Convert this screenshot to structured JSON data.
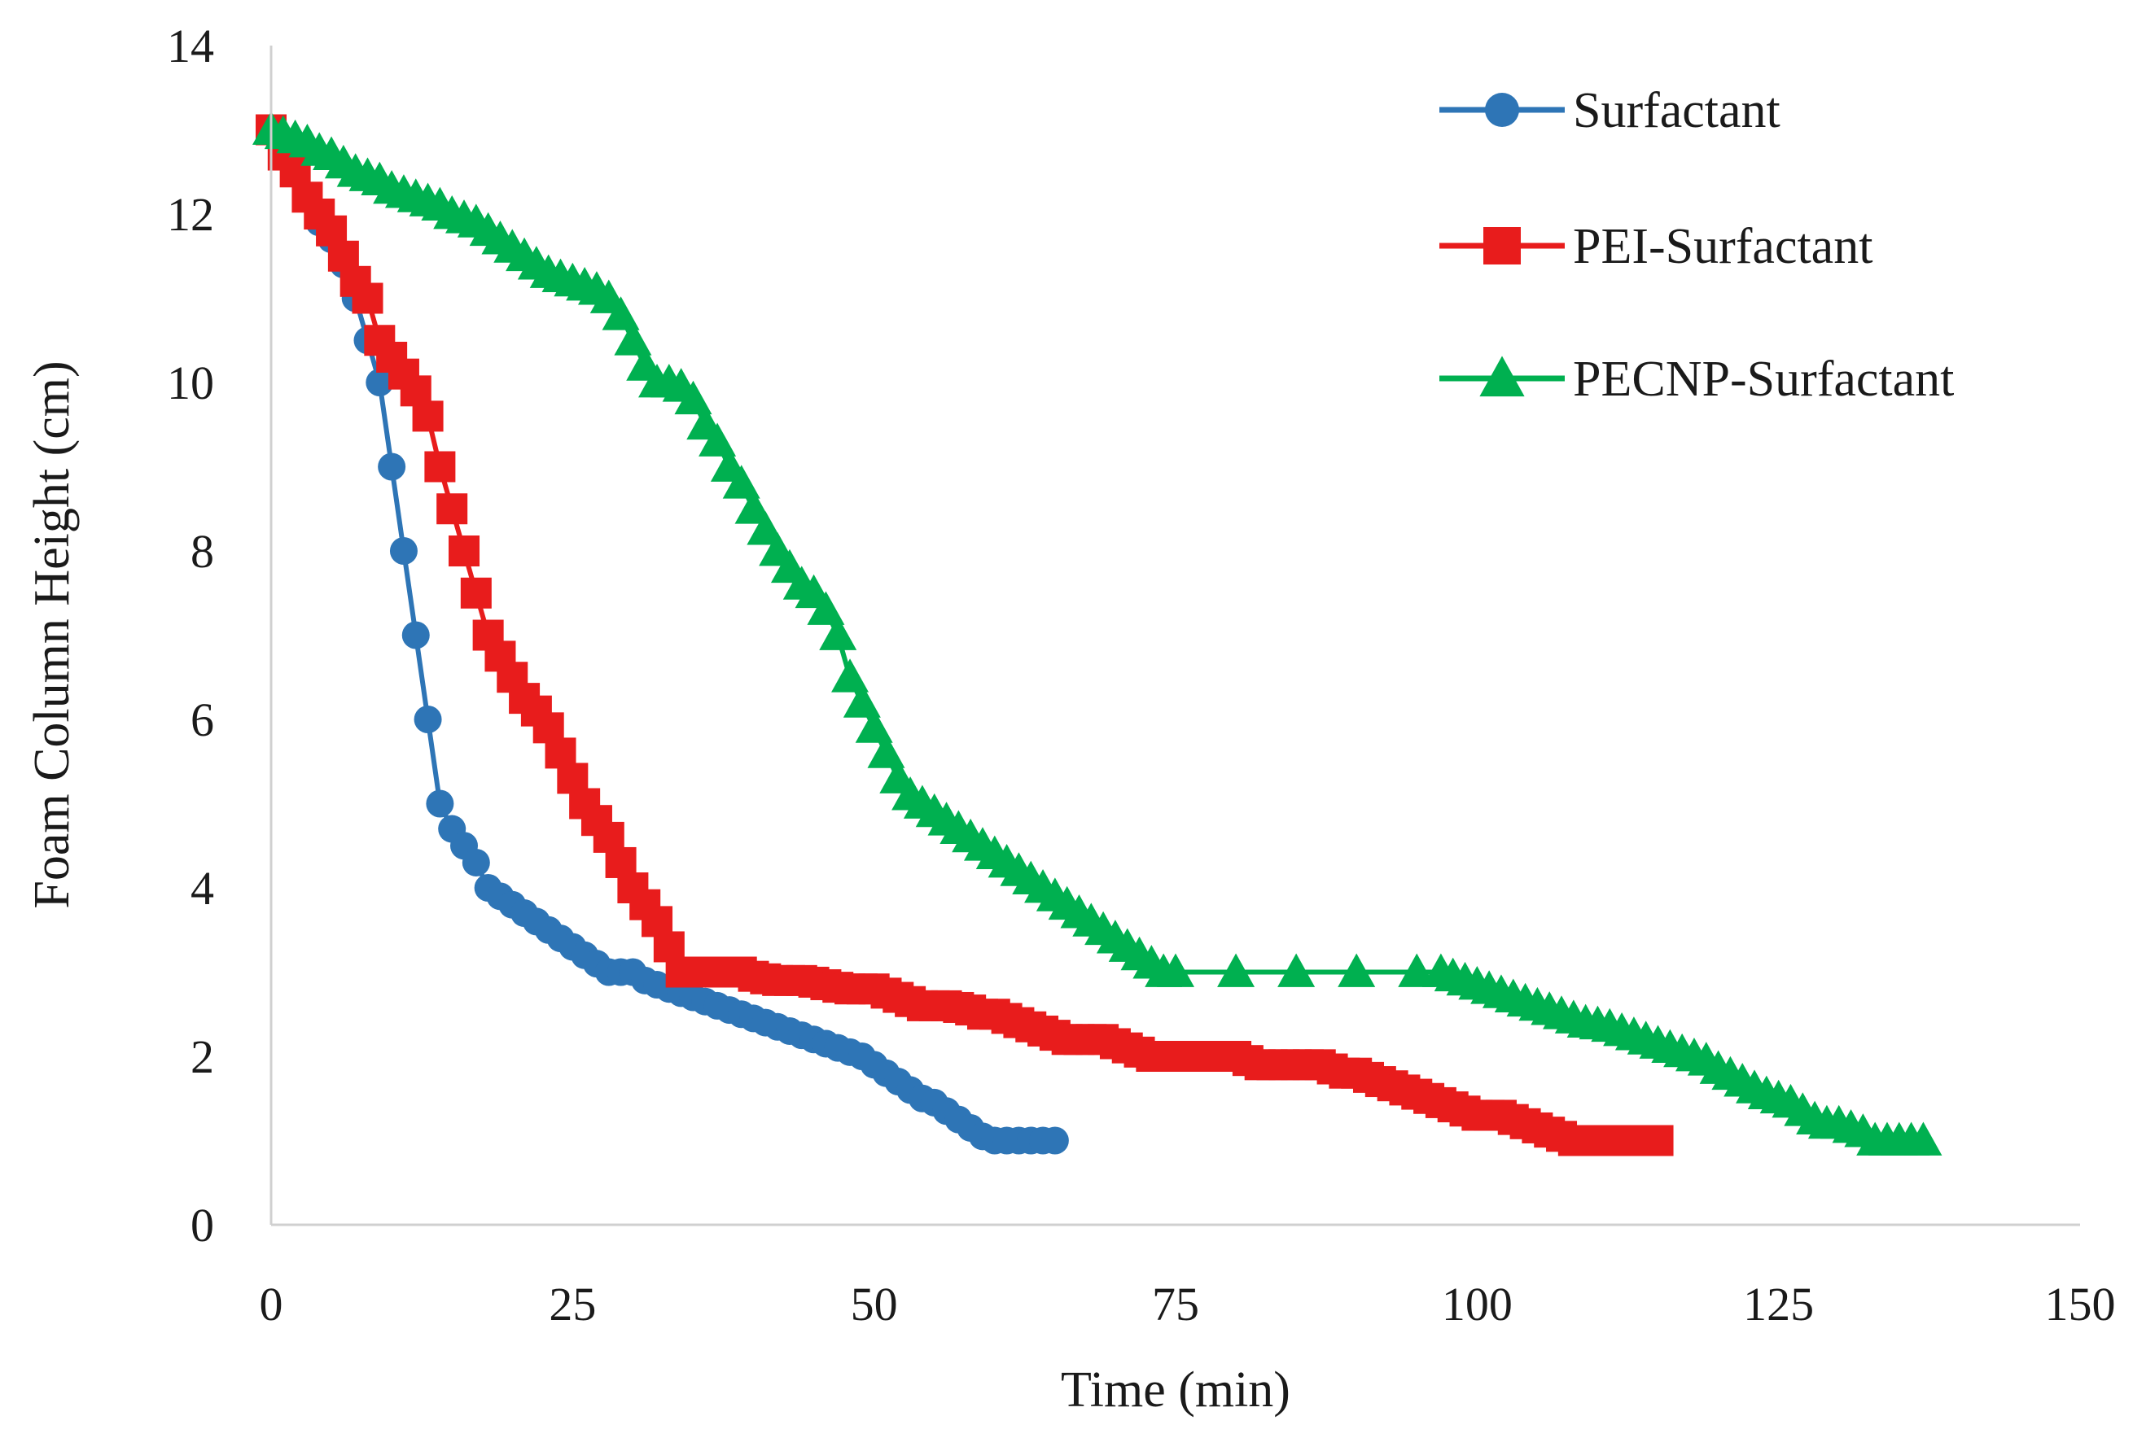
{
  "chart_data": {
    "type": "line",
    "title": "",
    "xlabel": "Time (min)",
    "ylabel": "Foam Column Height (cm)",
    "xlim": [
      0,
      150
    ],
    "ylim": [
      0,
      14
    ],
    "xticks": [
      0,
      25,
      50,
      75,
      100,
      125,
      150
    ],
    "yticks": [
      0,
      2,
      4,
      6,
      8,
      10,
      12,
      14
    ],
    "xtick_labels": [
      "0",
      "25",
      "50",
      "75",
      "100",
      "125",
      "150"
    ],
    "ytick_labels": [
      "0",
      "2",
      "4",
      "6",
      "8",
      "10",
      "12",
      "14"
    ],
    "grid": false,
    "legend_position": "top-right",
    "series": [
      {
        "name": "Surfactant",
        "color": "#2e75b6",
        "marker": "circle",
        "points": [
          [
            0,
            13
          ],
          [
            1,
            12.8
          ],
          [
            2,
            12.6
          ],
          [
            3,
            12.2
          ],
          [
            4,
            11.9
          ],
          [
            5,
            11.7
          ],
          [
            6,
            11.4
          ],
          [
            7,
            11
          ],
          [
            8,
            10.5
          ],
          [
            9,
            10
          ],
          [
            10,
            9
          ],
          [
            11,
            8
          ],
          [
            12,
            7
          ],
          [
            13,
            6
          ],
          [
            14,
            5
          ],
          [
            15,
            4.7
          ],
          [
            16,
            4.5
          ],
          [
            17,
            4.3
          ],
          [
            18,
            4
          ],
          [
            19,
            3.9
          ],
          [
            20,
            3.8
          ],
          [
            21,
            3.7
          ],
          [
            22,
            3.6
          ],
          [
            23,
            3.5
          ],
          [
            24,
            3.4
          ],
          [
            25,
            3.3
          ],
          [
            26,
            3.2
          ],
          [
            27,
            3.1
          ],
          [
            28,
            3
          ],
          [
            29,
            3
          ],
          [
            30,
            3
          ],
          [
            31,
            2.9
          ],
          [
            32,
            2.85
          ],
          [
            33,
            2.8
          ],
          [
            34,
            2.75
          ],
          [
            35,
            2.7
          ],
          [
            36,
            2.65
          ],
          [
            37,
            2.6
          ],
          [
            38,
            2.55
          ],
          [
            39,
            2.5
          ],
          [
            40,
            2.45
          ],
          [
            41,
            2.4
          ],
          [
            42,
            2.35
          ],
          [
            43,
            2.3
          ],
          [
            44,
            2.25
          ],
          [
            45,
            2.2
          ],
          [
            46,
            2.15
          ],
          [
            47,
            2.1
          ],
          [
            48,
            2.05
          ],
          [
            49,
            2
          ],
          [
            50,
            1.9
          ],
          [
            51,
            1.8
          ],
          [
            52,
            1.7
          ],
          [
            53,
            1.6
          ],
          [
            54,
            1.5
          ],
          [
            55,
            1.45
          ],
          [
            56,
            1.35
          ],
          [
            57,
            1.25
          ],
          [
            58,
            1.15
          ],
          [
            59,
            1.05
          ],
          [
            60,
            1
          ],
          [
            61,
            1
          ],
          [
            62,
            1
          ],
          [
            63,
            1
          ],
          [
            64,
            1
          ],
          [
            65,
            1
          ]
        ]
      },
      {
        "name": "PEI-Surfactant",
        "color": "#e81c1c",
        "marker": "square",
        "points": [
          [
            0,
            13
          ],
          [
            1,
            12.7
          ],
          [
            2,
            12.5
          ],
          [
            3,
            12.2
          ],
          [
            4,
            12
          ],
          [
            5,
            11.8
          ],
          [
            6,
            11.5
          ],
          [
            7,
            11.2
          ],
          [
            8,
            11
          ],
          [
            9,
            10.5
          ],
          [
            10,
            10.3
          ],
          [
            11,
            10.1
          ],
          [
            12,
            9.9
          ],
          [
            13,
            9.6
          ],
          [
            14,
            9
          ],
          [
            15,
            8.5
          ],
          [
            16,
            8
          ],
          [
            17,
            7.5
          ],
          [
            18,
            7
          ],
          [
            19,
            6.75
          ],
          [
            20,
            6.5
          ],
          [
            21,
            6.25
          ],
          [
            22,
            6.1
          ],
          [
            23,
            5.9
          ],
          [
            24,
            5.6
          ],
          [
            25,
            5.3
          ],
          [
            26,
            5
          ],
          [
            27,
            4.8
          ],
          [
            28,
            4.6
          ],
          [
            29,
            4.3
          ],
          [
            30,
            4
          ],
          [
            31,
            3.8
          ],
          [
            32,
            3.6
          ],
          [
            33,
            3.3
          ],
          [
            34,
            3
          ],
          [
            35,
            3
          ],
          [
            36,
            3
          ],
          [
            37,
            3
          ],
          [
            38,
            3
          ],
          [
            39,
            3
          ],
          [
            40,
            2.95
          ],
          [
            41,
            2.92
          ],
          [
            42,
            2.9
          ],
          [
            43,
            2.9
          ],
          [
            44,
            2.9
          ],
          [
            45,
            2.88
          ],
          [
            46,
            2.85
          ],
          [
            47,
            2.82
          ],
          [
            48,
            2.8
          ],
          [
            49,
            2.8
          ],
          [
            50,
            2.8
          ],
          [
            51,
            2.75
          ],
          [
            52,
            2.7
          ],
          [
            53,
            2.65
          ],
          [
            54,
            2.6
          ],
          [
            55,
            2.6
          ],
          [
            56,
            2.6
          ],
          [
            57,
            2.58
          ],
          [
            58,
            2.55
          ],
          [
            59,
            2.5
          ],
          [
            60,
            2.5
          ],
          [
            61,
            2.45
          ],
          [
            62,
            2.4
          ],
          [
            63,
            2.35
          ],
          [
            64,
            2.3
          ],
          [
            65,
            2.25
          ],
          [
            66,
            2.2
          ],
          [
            67,
            2.2
          ],
          [
            68,
            2.2
          ],
          [
            69,
            2.2
          ],
          [
            70,
            2.15
          ],
          [
            71,
            2.1
          ],
          [
            72,
            2.05
          ],
          [
            73,
            2
          ],
          [
            74,
            2
          ],
          [
            75,
            2
          ],
          [
            76,
            2
          ],
          [
            77,
            2
          ],
          [
            78,
            2
          ],
          [
            79,
            2
          ],
          [
            80,
            2
          ],
          [
            81,
            1.95
          ],
          [
            82,
            1.9
          ],
          [
            83,
            1.9
          ],
          [
            84,
            1.9
          ],
          [
            85,
            1.9
          ],
          [
            86,
            1.9
          ],
          [
            87,
            1.9
          ],
          [
            88,
            1.85
          ],
          [
            89,
            1.8
          ],
          [
            90,
            1.8
          ],
          [
            91,
            1.75
          ],
          [
            92,
            1.7
          ],
          [
            93,
            1.65
          ],
          [
            94,
            1.6
          ],
          [
            95,
            1.55
          ],
          [
            96,
            1.5
          ],
          [
            97,
            1.45
          ],
          [
            98,
            1.4
          ],
          [
            99,
            1.35
          ],
          [
            100,
            1.3
          ],
          [
            101,
            1.3
          ],
          [
            102,
            1.3
          ],
          [
            103,
            1.25
          ],
          [
            104,
            1.2
          ],
          [
            105,
            1.15
          ],
          [
            106,
            1.1
          ],
          [
            107,
            1.05
          ],
          [
            108,
            1
          ],
          [
            109,
            1
          ],
          [
            110,
            1
          ],
          [
            111,
            1
          ],
          [
            112,
            1
          ],
          [
            113,
            1
          ],
          [
            114,
            1
          ],
          [
            115,
            1
          ]
        ]
      },
      {
        "name": "PECNP-Surfactant",
        "color": "#00b050",
        "marker": "triangle",
        "points": [
          [
            0,
            13
          ],
          [
            1,
            12.95
          ],
          [
            2,
            12.9
          ],
          [
            3,
            12.85
          ],
          [
            4,
            12.75
          ],
          [
            5,
            12.7
          ],
          [
            6,
            12.6
          ],
          [
            7,
            12.5
          ],
          [
            8,
            12.45
          ],
          [
            9,
            12.4
          ],
          [
            10,
            12.3
          ],
          [
            11,
            12.25
          ],
          [
            12,
            12.2
          ],
          [
            13,
            12.15
          ],
          [
            14,
            12.1
          ],
          [
            15,
            12
          ],
          [
            16,
            11.95
          ],
          [
            17,
            11.9
          ],
          [
            18,
            11.8
          ],
          [
            19,
            11.7
          ],
          [
            20,
            11.6
          ],
          [
            21,
            11.5
          ],
          [
            22,
            11.4
          ],
          [
            23,
            11.3
          ],
          [
            24,
            11.25
          ],
          [
            25,
            11.2
          ],
          [
            26,
            11.15
          ],
          [
            27,
            11.1
          ],
          [
            28,
            11
          ],
          [
            29,
            10.8
          ],
          [
            30,
            10.5
          ],
          [
            31,
            10.2
          ],
          [
            32,
            10
          ],
          [
            33,
            10
          ],
          [
            34,
            9.95
          ],
          [
            35,
            9.8
          ],
          [
            36,
            9.5
          ],
          [
            37,
            9.3
          ],
          [
            38,
            9
          ],
          [
            39,
            8.8
          ],
          [
            40,
            8.5
          ],
          [
            41,
            8.25
          ],
          [
            42,
            8
          ],
          [
            43,
            7.8
          ],
          [
            44,
            7.6
          ],
          [
            45,
            7.5
          ],
          [
            46,
            7.3
          ],
          [
            47,
            7
          ],
          [
            48,
            6.5
          ],
          [
            49,
            6.2
          ],
          [
            50,
            5.9
          ],
          [
            51,
            5.6
          ],
          [
            52,
            5.3
          ],
          [
            53,
            5.1
          ],
          [
            54,
            5
          ],
          [
            55,
            4.9
          ],
          [
            56,
            4.8
          ],
          [
            57,
            4.7
          ],
          [
            58,
            4.6
          ],
          [
            59,
            4.5
          ],
          [
            60,
            4.4
          ],
          [
            61,
            4.3
          ],
          [
            62,
            4.2
          ],
          [
            63,
            4.1
          ],
          [
            64,
            4
          ],
          [
            65,
            3.9
          ],
          [
            66,
            3.8
          ],
          [
            67,
            3.7
          ],
          [
            68,
            3.6
          ],
          [
            69,
            3.5
          ],
          [
            70,
            3.4
          ],
          [
            71,
            3.3
          ],
          [
            72,
            3.2
          ],
          [
            73,
            3.1
          ],
          [
            74,
            3
          ],
          [
            75,
            3
          ],
          [
            80,
            3
          ],
          [
            85,
            3
          ],
          [
            90,
            3
          ],
          [
            95,
            3
          ],
          [
            97,
            3
          ],
          [
            98,
            2.95
          ],
          [
            99,
            2.9
          ],
          [
            100,
            2.85
          ],
          [
            101,
            2.8
          ],
          [
            102,
            2.75
          ],
          [
            103,
            2.7
          ],
          [
            104,
            2.65
          ],
          [
            105,
            2.6
          ],
          [
            106,
            2.55
          ],
          [
            107,
            2.5
          ],
          [
            108,
            2.45
          ],
          [
            109,
            2.4
          ],
          [
            110,
            2.38
          ],
          [
            111,
            2.35
          ],
          [
            112,
            2.3
          ],
          [
            113,
            2.25
          ],
          [
            114,
            2.2
          ],
          [
            115,
            2.15
          ],
          [
            116,
            2.1
          ],
          [
            117,
            2.05
          ],
          [
            118,
            2
          ],
          [
            119,
            1.95
          ],
          [
            120,
            1.85
          ],
          [
            121,
            1.78
          ],
          [
            122,
            1.7
          ],
          [
            123,
            1.62
          ],
          [
            124,
            1.55
          ],
          [
            125,
            1.5
          ],
          [
            126,
            1.45
          ],
          [
            127,
            1.35
          ],
          [
            128,
            1.25
          ],
          [
            129,
            1.2
          ],
          [
            130,
            1.2
          ],
          [
            131,
            1.15
          ],
          [
            132,
            1.1
          ],
          [
            133,
            1
          ],
          [
            134,
            1
          ],
          [
            135,
            1
          ],
          [
            136,
            1
          ],
          [
            137,
            1
          ]
        ]
      }
    ]
  }
}
